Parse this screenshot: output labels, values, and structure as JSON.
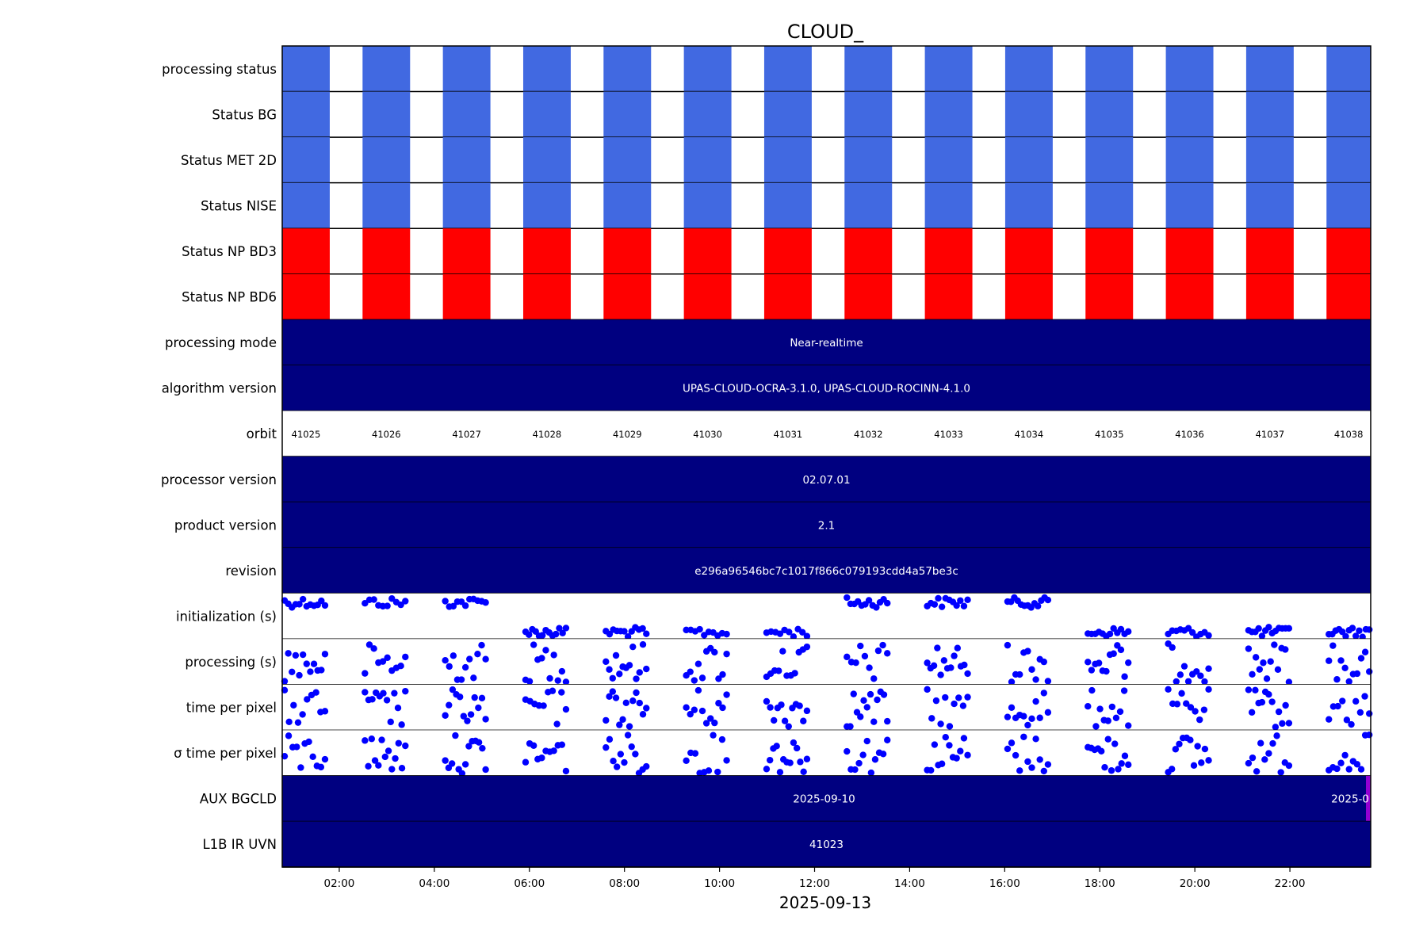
{
  "chart_data": {
    "type": "timeline",
    "title": "CLOUD_",
    "xlabel": "2025-09-13",
    "x_ticks": [
      "02:00",
      "04:00",
      "06:00",
      "08:00",
      "10:00",
      "12:00",
      "14:00",
      "16:00",
      "18:00",
      "20:00",
      "22:00"
    ],
    "x_range_hours": [
      0.8,
      23.7
    ],
    "colors": {
      "status_blue": "#4169e1",
      "status_red": "#ff0000",
      "band_navy": "#000080",
      "scatter_blue": "#0000ff",
      "aux_purple": "#9400d3"
    },
    "rows": [
      {
        "label": "processing status",
        "type": "status",
        "color": "#4169e1"
      },
      {
        "label": "Status BG",
        "type": "status",
        "color": "#4169e1"
      },
      {
        "label": "Status MET 2D",
        "type": "status",
        "color": "#4169e1"
      },
      {
        "label": "Status NISE",
        "type": "status",
        "color": "#4169e1"
      },
      {
        "label": "Status NP BD3",
        "type": "status",
        "color": "#ff0000"
      },
      {
        "label": "Status NP BD6",
        "type": "status",
        "color": "#ff0000"
      },
      {
        "label": "processing mode",
        "type": "band",
        "text": "Near-realtime"
      },
      {
        "label": "algorithm version",
        "type": "band",
        "text": "UPAS-CLOUD-OCRA-3.1.0, UPAS-CLOUD-ROCINN-4.1.0"
      },
      {
        "label": "orbit",
        "type": "orbit"
      },
      {
        "label": "processor version",
        "type": "band",
        "text": "02.07.01"
      },
      {
        "label": "product version",
        "type": "band",
        "text": "2.1"
      },
      {
        "label": "revision",
        "type": "band",
        "text": "e296a96546bc7c1017f866c079193cdd4a57be3c"
      },
      {
        "label": "initialization (s)",
        "type": "scatter",
        "variant": "init"
      },
      {
        "label": "processing (s)",
        "type": "scatter",
        "variant": "proc"
      },
      {
        "label": "time per pixel",
        "type": "scatter",
        "variant": "tpp"
      },
      {
        "label": "σ time per pixel",
        "type": "scatter",
        "variant": "sigma"
      },
      {
        "label": "AUX BGCLD",
        "type": "aux",
        "text": "2025-09-10",
        "text2": "2025-0"
      },
      {
        "label": "L1B IR UVN",
        "type": "band",
        "text": "41023"
      }
    ],
    "orbits": [
      {
        "number": "41025",
        "start": 0.8,
        "end": 1.8
      },
      {
        "number": "41026",
        "start": 2.49,
        "end": 3.49
      },
      {
        "number": "41027",
        "start": 4.18,
        "end": 5.18
      },
      {
        "number": "41028",
        "start": 5.87,
        "end": 6.87
      },
      {
        "number": "41029",
        "start": 7.56,
        "end": 8.56
      },
      {
        "number": "41030",
        "start": 9.25,
        "end": 10.25
      },
      {
        "number": "41031",
        "start": 10.94,
        "end": 11.94
      },
      {
        "number": "41032",
        "start": 12.63,
        "end": 13.63
      },
      {
        "number": "41033",
        "start": 14.32,
        "end": 15.32
      },
      {
        "number": "41034",
        "start": 16.01,
        "end": 17.01
      },
      {
        "number": "41035",
        "start": 17.7,
        "end": 18.7
      },
      {
        "number": "41036",
        "start": 19.39,
        "end": 20.39
      },
      {
        "number": "41037",
        "start": 21.08,
        "end": 22.08
      },
      {
        "number": "41038",
        "start": 22.77,
        "end": 23.7
      }
    ],
    "aux_change_hour": 23.6
  }
}
